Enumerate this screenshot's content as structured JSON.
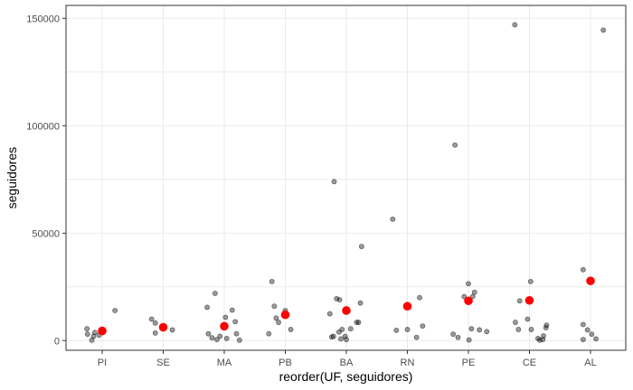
{
  "chart_data": {
    "type": "scatter",
    "xlabel": "reorder(UF, seguidores)",
    "ylabel": "seguidores",
    "ylim": [
      -4500,
      156000
    ],
    "yticks": [
      0,
      50000,
      100000,
      150000
    ],
    "ytick_labels": [
      "0",
      "50000",
      "100000",
      "150000"
    ],
    "grid": true,
    "categories": [
      "PI",
      "SE",
      "MA",
      "PB",
      "BA",
      "RN",
      "PE",
      "CE",
      "AL"
    ],
    "colors": {
      "points": "#000000",
      "mean": "#ff0000",
      "grid": "#ebebeb",
      "border": "#333333"
    },
    "series": [
      {
        "role": "observations",
        "points": [
          {
            "cat": "PI",
            "dx": -0.25,
            "y": 5500
          },
          {
            "cat": "PI",
            "dx": -0.24,
            "y": 3000
          },
          {
            "cat": "PI",
            "dx": -0.17,
            "y": 200
          },
          {
            "cat": "PI",
            "dx": -0.14,
            "y": 2000
          },
          {
            "cat": "PI",
            "dx": -0.12,
            "y": 3800
          },
          {
            "cat": "PI",
            "dx": -0.05,
            "y": 2500
          },
          {
            "cat": "PI",
            "dx": 0.21,
            "y": 14000
          },
          {
            "cat": "SE",
            "dx": -0.19,
            "y": 10000
          },
          {
            "cat": "SE",
            "dx": -0.13,
            "y": 8200
          },
          {
            "cat": "SE",
            "dx": -0.13,
            "y": 3500
          },
          {
            "cat": "SE",
            "dx": 0.15,
            "y": 5000
          },
          {
            "cat": "MA",
            "dx": -0.28,
            "y": 15500
          },
          {
            "cat": "MA",
            "dx": -0.26,
            "y": 3200
          },
          {
            "cat": "MA",
            "dx": -0.2,
            "y": 1300
          },
          {
            "cat": "MA",
            "dx": -0.15,
            "y": 22000
          },
          {
            "cat": "MA",
            "dx": -0.12,
            "y": 500
          },
          {
            "cat": "MA",
            "dx": -0.07,
            "y": 2000
          },
          {
            "cat": "MA",
            "dx": 0.02,
            "y": 10800
          },
          {
            "cat": "MA",
            "dx": 0.04,
            "y": 1000
          },
          {
            "cat": "MA",
            "dx": 0.13,
            "y": 14200
          },
          {
            "cat": "MA",
            "dx": 0.18,
            "y": 8800
          },
          {
            "cat": "MA",
            "dx": 0.2,
            "y": 3200
          },
          {
            "cat": "MA",
            "dx": 0.25,
            "y": 200
          },
          {
            "cat": "PB",
            "dx": -0.27,
            "y": 3200
          },
          {
            "cat": "PB",
            "dx": -0.22,
            "y": 27500
          },
          {
            "cat": "PB",
            "dx": -0.18,
            "y": 16000
          },
          {
            "cat": "PB",
            "dx": -0.15,
            "y": 10500
          },
          {
            "cat": "PB",
            "dx": -0.11,
            "y": 8500
          },
          {
            "cat": "PB",
            "dx": 0.0,
            "y": 14000
          },
          {
            "cat": "PB",
            "dx": 0.09,
            "y": 5200
          },
          {
            "cat": "BA",
            "dx": -0.27,
            "y": 12500
          },
          {
            "cat": "BA",
            "dx": -0.24,
            "y": 1700
          },
          {
            "cat": "BA",
            "dx": -0.21,
            "y": 2000
          },
          {
            "cat": "BA",
            "dx": -0.2,
            "y": 74000
          },
          {
            "cat": "BA",
            "dx": -0.16,
            "y": 19500
          },
          {
            "cat": "BA",
            "dx": -0.12,
            "y": 4000
          },
          {
            "cat": "BA",
            "dx": -0.11,
            "y": 19000
          },
          {
            "cat": "BA",
            "dx": -0.09,
            "y": 800
          },
          {
            "cat": "BA",
            "dx": -0.07,
            "y": 5200
          },
          {
            "cat": "BA",
            "dx": -0.02,
            "y": 2000
          },
          {
            "cat": "BA",
            "dx": 0.0,
            "y": 500
          },
          {
            "cat": "BA",
            "dx": 0.07,
            "y": 5500
          },
          {
            "cat": "BA",
            "dx": 0.17,
            "y": 8500
          },
          {
            "cat": "BA",
            "dx": 0.2,
            "y": 8500
          },
          {
            "cat": "BA",
            "dx": 0.23,
            "y": 17500
          },
          {
            "cat": "BA",
            "dx": 0.25,
            "y": 43800
          },
          {
            "cat": "RN",
            "dx": -0.24,
            "y": 56500
          },
          {
            "cat": "RN",
            "dx": -0.18,
            "y": 4800
          },
          {
            "cat": "RN",
            "dx": 0.0,
            "y": 5200
          },
          {
            "cat": "RN",
            "dx": 0.15,
            "y": 1500
          },
          {
            "cat": "RN",
            "dx": 0.2,
            "y": 20000
          },
          {
            "cat": "RN",
            "dx": 0.25,
            "y": 6800
          },
          {
            "cat": "PE",
            "dx": -0.25,
            "y": 3000
          },
          {
            "cat": "PE",
            "dx": -0.22,
            "y": 91000
          },
          {
            "cat": "PE",
            "dx": -0.17,
            "y": 1500
          },
          {
            "cat": "PE",
            "dx": -0.07,
            "y": 20500
          },
          {
            "cat": "PE",
            "dx": 0.0,
            "y": 26500
          },
          {
            "cat": "PE",
            "dx": 0.01,
            "y": 300
          },
          {
            "cat": "PE",
            "dx": 0.05,
            "y": 5500
          },
          {
            "cat": "PE",
            "dx": 0.07,
            "y": 20500
          },
          {
            "cat": "PE",
            "dx": 0.1,
            "y": 22500
          },
          {
            "cat": "PE",
            "dx": 0.18,
            "y": 5000
          },
          {
            "cat": "PE",
            "dx": 0.3,
            "y": 4200
          },
          {
            "cat": "CE",
            "dx": -0.24,
            "y": 147000
          },
          {
            "cat": "CE",
            "dx": -0.23,
            "y": 8500
          },
          {
            "cat": "CE",
            "dx": -0.18,
            "y": 5200
          },
          {
            "cat": "CE",
            "dx": -0.16,
            "y": 18500
          },
          {
            "cat": "CE",
            "dx": -0.03,
            "y": 10000
          },
          {
            "cat": "CE",
            "dx": 0.02,
            "y": 27500
          },
          {
            "cat": "CE",
            "dx": 0.03,
            "y": 5200
          },
          {
            "cat": "CE",
            "dx": 0.14,
            "y": 1000
          },
          {
            "cat": "CE",
            "dx": 0.17,
            "y": 200
          },
          {
            "cat": "CE",
            "dx": 0.22,
            "y": 500
          },
          {
            "cat": "CE",
            "dx": 0.23,
            "y": 2200
          },
          {
            "cat": "CE",
            "dx": 0.27,
            "y": 6000
          },
          {
            "cat": "CE",
            "dx": 0.28,
            "y": 7200
          },
          {
            "cat": "AL",
            "dx": -0.12,
            "y": 33000
          },
          {
            "cat": "AL",
            "dx": -0.12,
            "y": 7500
          },
          {
            "cat": "AL",
            "dx": -0.12,
            "y": 500
          },
          {
            "cat": "AL",
            "dx": -0.05,
            "y": 5000
          },
          {
            "cat": "AL",
            "dx": 0.02,
            "y": 3000
          },
          {
            "cat": "AL",
            "dx": 0.09,
            "y": 800
          },
          {
            "cat": "AL",
            "dx": 0.21,
            "y": 144500
          }
        ]
      },
      {
        "role": "mean",
        "points": [
          {
            "cat": "PI",
            "dx": 0.0,
            "y": 4500
          },
          {
            "cat": "SE",
            "dx": 0.0,
            "y": 6200
          },
          {
            "cat": "MA",
            "dx": 0.0,
            "y": 6700
          },
          {
            "cat": "PB",
            "dx": 0.0,
            "y": 12000
          },
          {
            "cat": "BA",
            "dx": 0.0,
            "y": 14000
          },
          {
            "cat": "RN",
            "dx": 0.0,
            "y": 16000
          },
          {
            "cat": "PE",
            "dx": 0.0,
            "y": 18500
          },
          {
            "cat": "CE",
            "dx": 0.0,
            "y": 18700
          },
          {
            "cat": "AL",
            "dx": 0.0,
            "y": 27800
          }
        ]
      }
    ]
  }
}
